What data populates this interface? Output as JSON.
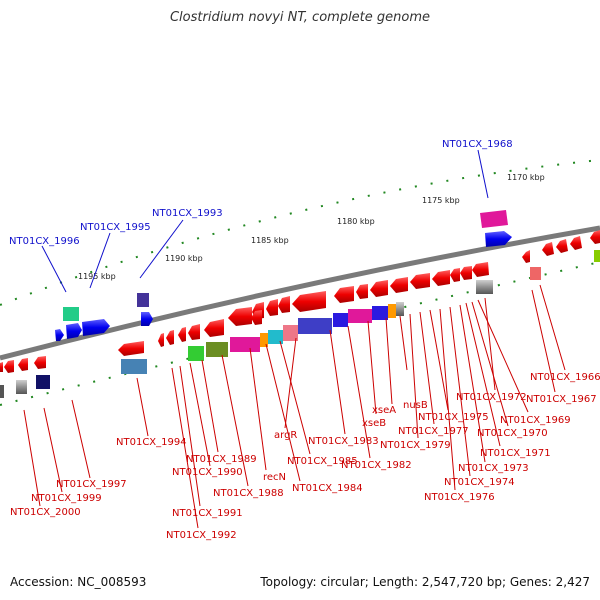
{
  "title": "Clostridium novyi NT, complete genome",
  "footer": {
    "accession": "Accession: NC_008593",
    "summary": "Topology: circular; Length: 2,547,720 bp; Genes: 2,427"
  },
  "ticks": [
    "1170 kbp",
    "1175 kbp",
    "1180 kbp",
    "1185 kbp",
    "1190 kbp",
    "1195 kbp"
  ],
  "upper_labels": [
    "NT01CX_1968",
    "NT01CX_1993",
    "NT01CX_1995",
    "NT01CX_1996"
  ],
  "lower_labels": [
    "NT01CX_1966",
    "NT01CX_1967",
    "NT01CX_1972",
    "NT01CX_1969",
    "NT01CX_1970",
    "NT01CX_1971",
    "NT01CX_1973",
    "NT01CX_1974",
    "NT01CX_1976",
    "NT01CX_1975",
    "NT01CX_1977",
    "NT01CX_1979",
    "nusB",
    "xseA",
    "xseB",
    "NT01CX_1982",
    "NT01CX_1983",
    "argR",
    "NT01CX_1985",
    "NT01CX_1984",
    "recN",
    "NT01CX_1988",
    "NT01CX_1989",
    "NT01CX_1990",
    "NT01CX_1991",
    "NT01CX_1992",
    "NT01CX_1994",
    "NT01CX_1997",
    "NT01CX_1999",
    "NT01CX_2000"
  ],
  "colors": {
    "forward": "#0000ee",
    "reverse": "#ee0000",
    "backbone": "#808080",
    "label_blue": "#1010cc",
    "label_red": "#cc0000",
    "scale_dot": "#228822"
  }
}
